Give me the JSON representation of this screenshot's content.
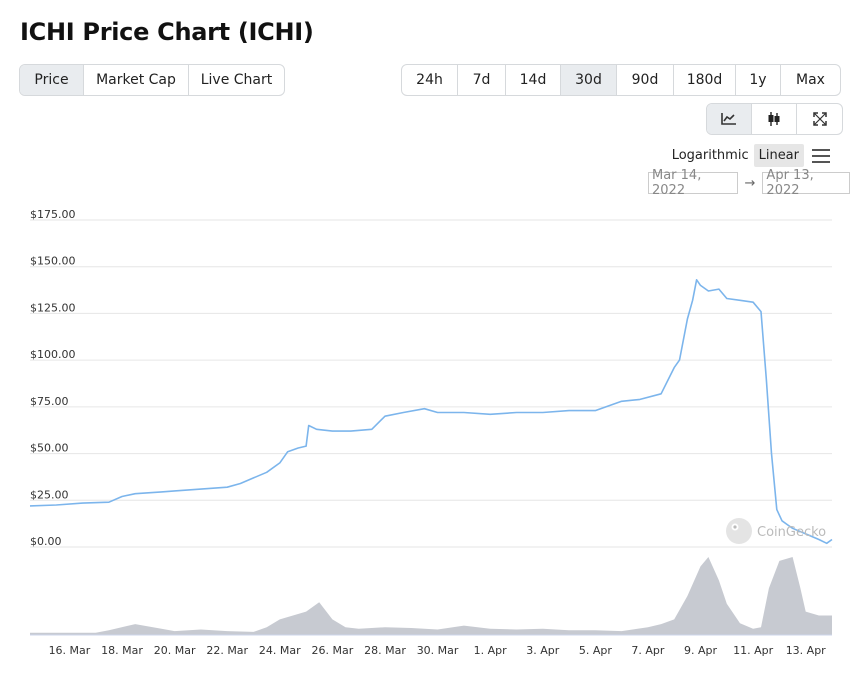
{
  "page": {
    "title": "ICHI Price Chart (ICHI)"
  },
  "view_tabs": [
    {
      "label": "Price",
      "active": true
    },
    {
      "label": "Market Cap",
      "active": false
    },
    {
      "label": "Live Chart",
      "active": false
    }
  ],
  "range_tabs": [
    {
      "label": "24h",
      "active": false
    },
    {
      "label": "7d",
      "active": false
    },
    {
      "label": "14d",
      "active": false
    },
    {
      "label": "30d",
      "active": true
    },
    {
      "label": "90d",
      "active": false
    },
    {
      "label": "180d",
      "active": false
    },
    {
      "label": "1y",
      "active": false
    },
    {
      "label": "Max",
      "active": false
    }
  ],
  "tools": [
    {
      "icon": "line-chart-icon",
      "active": true
    },
    {
      "icon": "candlestick-icon",
      "active": false
    },
    {
      "icon": "fullscreen-icon",
      "active": false
    }
  ],
  "scale": {
    "log_label": "Logarithmic",
    "linear_label": "Linear",
    "active": "Linear"
  },
  "date_range": {
    "from": "Mar 14, 2022",
    "arrow": "→",
    "to": "Apr 13, 2022"
  },
  "watermark": "CoinGecko",
  "colors": {
    "line": "#7cb5ec",
    "volume": "#c7cad1",
    "active_bg": "#e9ecef",
    "grid": "#e6e6e6"
  },
  "chart_data": {
    "type": "line",
    "y_tick_labels": [
      "$0.00",
      "$25.00",
      "$50.00",
      "$75.00",
      "$100.00",
      "$125.00",
      "$150.00",
      "$175.00"
    ],
    "y_ticks": [
      0,
      25,
      50,
      75,
      100,
      125,
      150,
      175
    ],
    "ylim": [
      0,
      175
    ],
    "xlim": [
      14.5,
      45.0
    ],
    "x_tick_labels": [
      "16. Mar",
      "18. Mar",
      "20. Mar",
      "22. Mar",
      "24. Mar",
      "26. Mar",
      "28. Mar",
      "30. Mar",
      "1. Apr",
      "3. Apr",
      "5. Apr",
      "7. Apr",
      "9. Apr",
      "11. Apr",
      "13. Apr"
    ],
    "x_ticks": [
      16,
      18,
      20,
      22,
      24,
      26,
      28,
      30,
      32,
      34,
      36,
      38,
      40,
      42,
      44
    ],
    "price_series": {
      "x": [
        14.5,
        15.5,
        16.5,
        17.5,
        18.0,
        18.5,
        19.0,
        19.5,
        20.0,
        21.0,
        22.0,
        22.5,
        23.0,
        23.5,
        24.0,
        24.3,
        24.7,
        25.0,
        25.1,
        25.4,
        26.0,
        26.7,
        27.5,
        28.0,
        28.7,
        29.5,
        30.0,
        31.0,
        32.0,
        33.0,
        34.0,
        35.0,
        36.0,
        37.0,
        37.7,
        38.5,
        39.0,
        39.2,
        39.5,
        39.7,
        39.85,
        40.0,
        40.3,
        40.7,
        41.0,
        41.5,
        42.0,
        42.3,
        42.5,
        42.7,
        42.9,
        43.1,
        43.3,
        43.5,
        44.0,
        44.5,
        44.8,
        45.0
      ],
      "y": [
        22,
        22.5,
        23.5,
        24,
        27,
        28.5,
        29,
        29.5,
        30,
        31,
        32,
        34,
        37,
        40,
        45,
        51,
        53,
        54,
        65,
        63,
        62,
        62,
        63,
        70,
        72,
        74,
        72,
        72,
        71,
        72,
        72,
        73,
        73,
        78,
        79,
        82,
        96,
        100,
        122,
        132,
        143,
        140,
        137,
        138,
        133,
        132,
        131,
        126,
        90,
        50,
        20,
        14,
        12,
        10,
        7,
        4,
        2,
        4
      ]
    },
    "volume_series": {
      "x": [
        14.5,
        17.0,
        17.5,
        18.5,
        19.5,
        20.0,
        21.0,
        22.0,
        23.0,
        23.5,
        24.0,
        25.0,
        25.5,
        26.0,
        26.5,
        27.0,
        28.0,
        29.0,
        30.0,
        31.0,
        32.0,
        33.0,
        34.0,
        35.0,
        36.0,
        37.0,
        38.0,
        38.5,
        39.0,
        39.5,
        40.0,
        40.3,
        40.7,
        41.0,
        41.5,
        42.0,
        42.3,
        42.6,
        43.0,
        43.5,
        43.8,
        44.0,
        44.5,
        45.0
      ],
      "y": [
        3,
        3,
        6,
        14,
        8,
        5,
        7,
        5,
        4,
        10,
        20,
        30,
        42,
        20,
        10,
        8,
        10,
        9,
        7,
        12,
        8,
        7,
        8,
        6,
        6,
        5,
        10,
        14,
        20,
        50,
        88,
        100,
        70,
        40,
        15,
        8,
        10,
        60,
        95,
        100,
        60,
        30,
        25,
        25
      ]
    }
  }
}
